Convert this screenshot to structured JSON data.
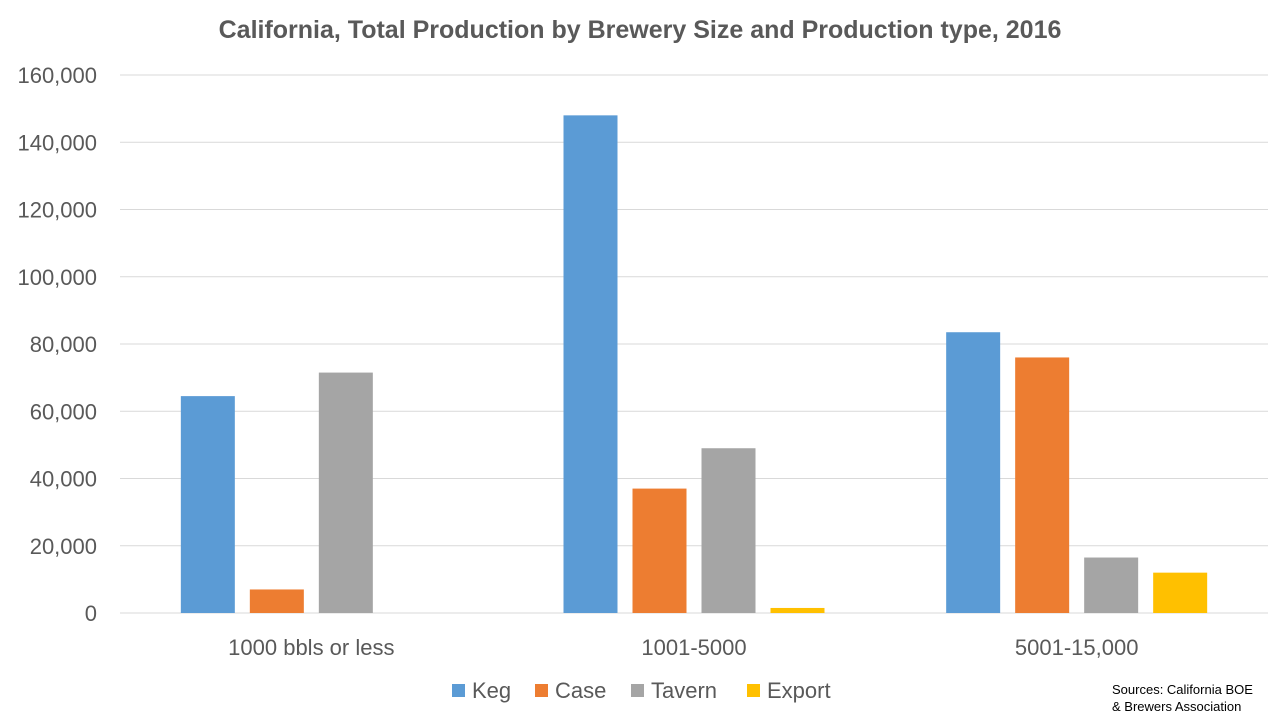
{
  "chart_data": {
    "type": "bar",
    "title": "California, Total Production by Brewery Size and Production type, 2016",
    "categories": [
      "1000 bbls or less",
      "1001-5000",
      "5001-15,000"
    ],
    "series": [
      {
        "name": "Keg",
        "color": "#5b9bd5",
        "values": [
          64500,
          148000,
          83500
        ]
      },
      {
        "name": "Case",
        "color": "#ed7d31",
        "values": [
          7000,
          37000,
          76000
        ]
      },
      {
        "name": "Tavern",
        "color": "#a5a5a5",
        "values": [
          71500,
          49000,
          16500
        ]
      },
      {
        "name": "Export",
        "color": "#ffc000",
        "values": [
          0,
          1500,
          12000
        ]
      }
    ],
    "ylim": [
      0,
      160000
    ],
    "yticks": [
      0,
      20000,
      40000,
      60000,
      80000,
      100000,
      120000,
      140000,
      160000
    ],
    "ytick_labels": [
      "0",
      "20,000",
      "40,000",
      "60,000",
      "80,000",
      "100,000",
      "120,000",
      "140,000",
      "160,000"
    ],
    "grid": true,
    "legend_position": "bottom",
    "xlabel": "",
    "ylabel": ""
  },
  "source_note": {
    "line1": "Sources: California BOE",
    "line2": "& Brewers Association"
  }
}
